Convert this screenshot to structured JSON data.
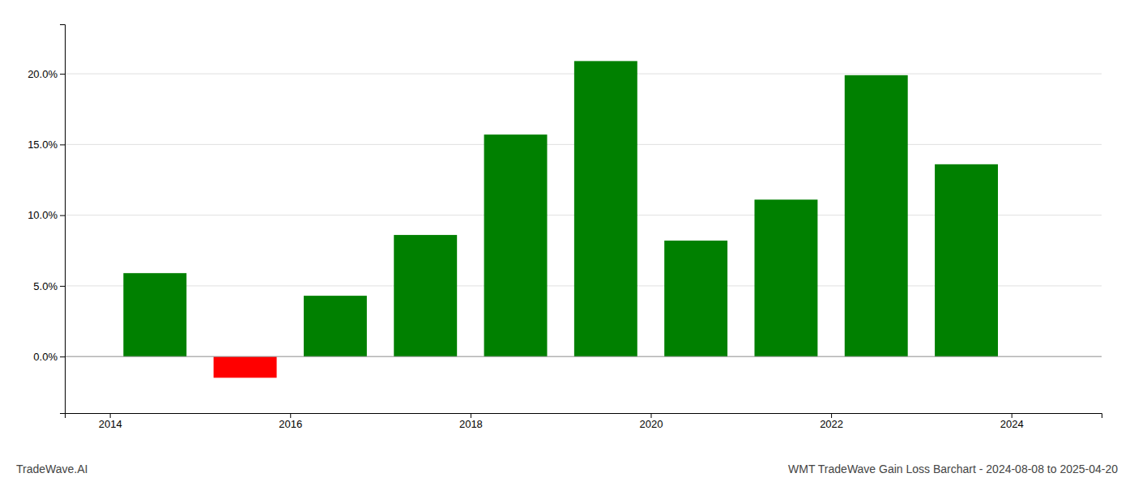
{
  "chart_data": {
    "type": "bar",
    "title": "WMT TradeWave Gain Loss Barchart - 2024-08-08 to 2025-04-20",
    "annotations": [
      "TradeWave.AI"
    ],
    "x": [
      2014.5,
      2015.5,
      2016.5,
      2017.5,
      2018.5,
      2019.5,
      2020.5,
      2021.5,
      2022.5,
      2023.5
    ],
    "values": [
      0.059,
      -0.015,
      0.043,
      0.086,
      0.157,
      0.209,
      0.082,
      0.111,
      0.199,
      0.136
    ],
    "colors": [
      "#008000",
      "#ff0000",
      "#008000",
      "#008000",
      "#008000",
      "#008000",
      "#008000",
      "#008000",
      "#008000",
      "#008000"
    ],
    "xlim": [
      2013.5,
      2025.0
    ],
    "xticks": [
      2014,
      2016,
      2018,
      2020,
      2022,
      2024
    ],
    "ylim": [
      -0.04,
      0.235
    ],
    "yticks": [
      {
        "value": 0.0,
        "label": "0.0%"
      },
      {
        "value": 0.05,
        "label": "5.0%"
      },
      {
        "value": 0.1,
        "label": "10.0%"
      },
      {
        "value": 0.15,
        "label": "15.0%"
      },
      {
        "value": 0.2,
        "label": "20.0%"
      }
    ],
    "grid": true
  }
}
